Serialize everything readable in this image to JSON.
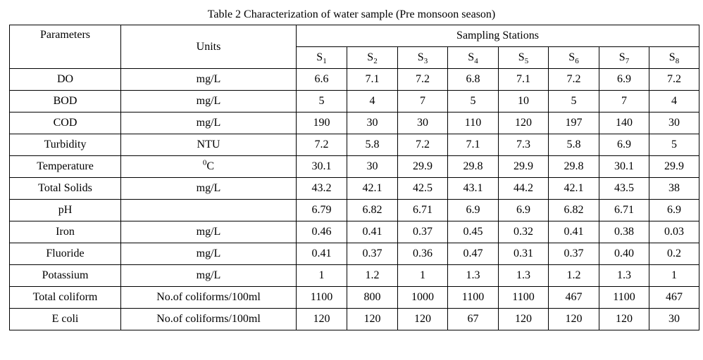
{
  "caption": "Table 2 Characterization of water sample (Pre monsoon season)",
  "headers": {
    "parameters": "Parameters",
    "units": "Units",
    "sampling_stations": "Sampling Stations"
  },
  "stations": [
    {
      "base": "S",
      "sub": "1"
    },
    {
      "base": "S",
      "sub": "2"
    },
    {
      "base": "S",
      "sub": "3"
    },
    {
      "base": "S",
      "sub": "4"
    },
    {
      "base": "S",
      "sub": "5"
    },
    {
      "base": "S",
      "sub": "6"
    },
    {
      "base": "S",
      "sub": "7"
    },
    {
      "base": "S",
      "sub": "8"
    }
  ],
  "rows": [
    {
      "name": "DO",
      "unit": "mg/L",
      "values": [
        "6.6",
        "7.1",
        "7.2",
        "6.8",
        "7.1",
        "7.2",
        "6.9",
        "7.2"
      ]
    },
    {
      "name": "BOD",
      "unit": "mg/L",
      "values": [
        "5",
        "4",
        "7",
        "5",
        "10",
        "5",
        "7",
        "4"
      ]
    },
    {
      "name": "COD",
      "unit": "mg/L",
      "values": [
        "190",
        "30",
        "30",
        "110",
        "120",
        "197",
        "140",
        "30"
      ]
    },
    {
      "name": "Turbidity",
      "unit": "NTU",
      "values": [
        "7.2",
        "5.8",
        "7.2",
        "7.1",
        "7.3",
        "5.8",
        "6.9",
        "5"
      ]
    },
    {
      "name": "Temperature",
      "unit_sup": "0",
      "unit": "C",
      "values": [
        "30.1",
        "30",
        "29.9",
        "29.8",
        "29.9",
        "29.8",
        "30.1",
        "29.9"
      ]
    },
    {
      "name": "Total Solids",
      "unit": "mg/L",
      "values": [
        "43.2",
        "42.1",
        "42.5",
        "43.1",
        "44.2",
        "42.1",
        "43.5",
        "38"
      ]
    },
    {
      "name": "pH",
      "unit": "",
      "values": [
        "6.79",
        "6.82",
        "6.71",
        "6.9",
        "6.9",
        "6.82",
        "6.71",
        "6.9"
      ]
    },
    {
      "name": "Iron",
      "unit": "mg/L",
      "values": [
        "0.46",
        "0.41",
        "0.37",
        "0.45",
        "0.32",
        "0.41",
        "0.38",
        "0.03"
      ]
    },
    {
      "name": "Fluoride",
      "unit": "mg/L",
      "values": [
        "0.41",
        "0.37",
        "0.36",
        "0.47",
        "0.31",
        "0.37",
        "0.40",
        "0.2"
      ]
    },
    {
      "name": "Potassium",
      "unit": "mg/L",
      "values": [
        "1",
        "1.2",
        "1",
        "1.3",
        "1.3",
        "1.2",
        "1.3",
        "1"
      ]
    },
    {
      "name": "Total coliform",
      "unit": "No.of coliforms/100ml",
      "values": [
        "1100",
        "800",
        "1000",
        "1100",
        "1100",
        "467",
        "1100",
        "467"
      ]
    },
    {
      "name": "E coli",
      "unit": "No.of coliforms/100ml",
      "values": [
        "120",
        "120",
        "120",
        "67",
        "120",
        "120",
        "120",
        "30"
      ]
    }
  ]
}
